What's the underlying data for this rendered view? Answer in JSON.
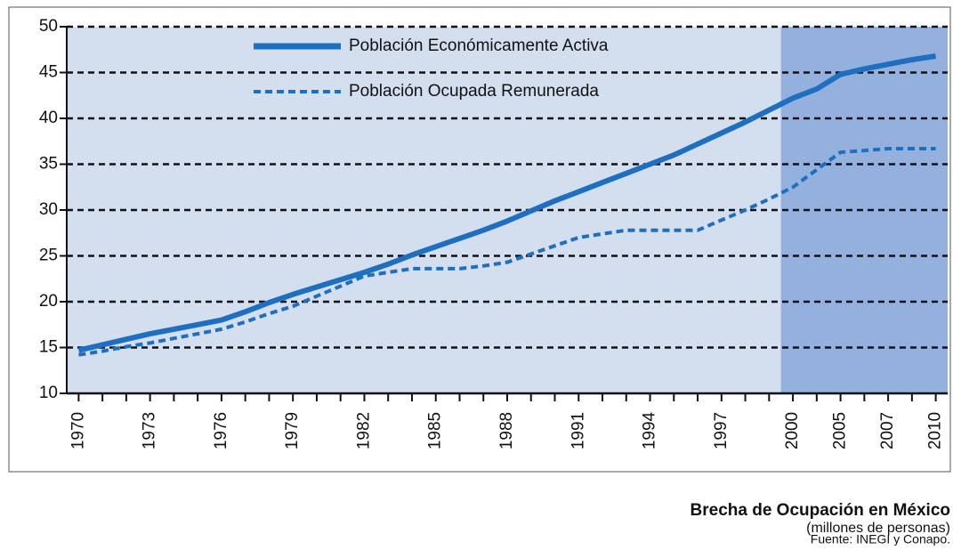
{
  "chart_data": {
    "type": "line",
    "title": "Brecha de Ocupación en México",
    "subtitle": "(millones de personas)",
    "source": "Fuente: INEGI y Conapo.",
    "categories": [
      "1970",
      null,
      null,
      "1973",
      null,
      null,
      "1976",
      null,
      null,
      "1979",
      null,
      null,
      "1982",
      null,
      null,
      "1985",
      null,
      null,
      "1988",
      null,
      null,
      "1991",
      null,
      null,
      "1994",
      null,
      null,
      "1997",
      null,
      null,
      "2000",
      null,
      "2005",
      null,
      "2007",
      null,
      "2010"
    ],
    "series": [
      {
        "name": "Población Económicamente Activa",
        "color": "#1f6fc0",
        "style": "solid",
        "values": [
          14.7,
          15.3,
          15.9,
          16.5,
          17.0,
          17.5,
          18.0,
          18.9,
          19.9,
          20.8,
          21.6,
          22.4,
          23.2,
          24.1,
          25.1,
          26.0,
          26.9,
          27.8,
          28.8,
          29.9,
          31.0,
          32.0,
          33.0,
          34.0,
          35.0,
          36.0,
          37.2,
          38.4,
          39.6,
          40.9,
          42.2,
          43.2,
          44.8,
          45.4,
          45.9,
          46.4,
          46.8
        ]
      },
      {
        "name": "Población Ocupada Remunerada",
        "color": "#1f6fc0",
        "style": "dotted",
        "values": [
          14.2,
          14.6,
          15.1,
          15.5,
          16.0,
          16.5,
          17.0,
          17.8,
          18.7,
          19.5,
          20.6,
          21.7,
          22.8,
          23.2,
          23.6,
          23.6,
          23.6,
          23.9,
          24.3,
          25.2,
          26.1,
          27.0,
          27.4,
          27.8,
          27.8,
          27.8,
          27.8,
          28.9,
          30.0,
          31.2,
          32.5,
          34.4,
          36.3,
          36.5,
          36.7,
          36.7,
          36.7
        ]
      }
    ],
    "ylim": [
      10,
      50
    ],
    "yticks": [
      10,
      15,
      20,
      25,
      30,
      35,
      40,
      45,
      50
    ],
    "grid": true,
    "highlight_from": "2000",
    "plot_color": "#d3deee",
    "highlight_color": "#94b1de"
  }
}
